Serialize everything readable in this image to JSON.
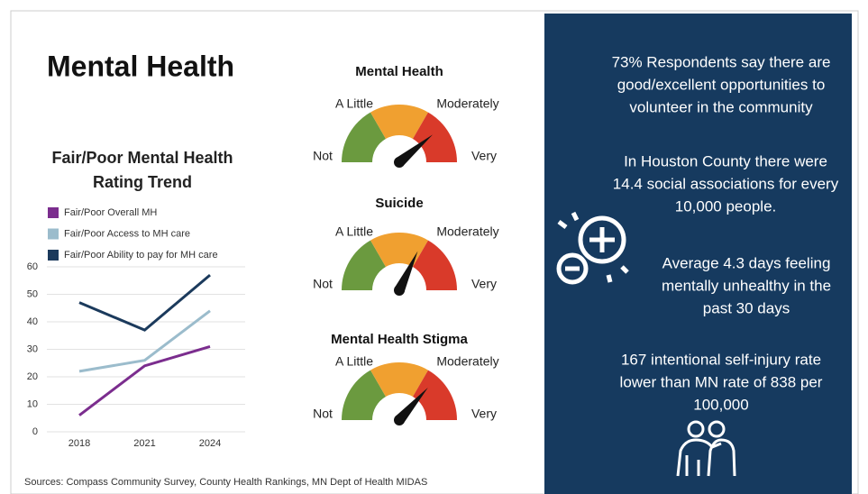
{
  "title": "Mental Health",
  "chart_data": {
    "type": "line",
    "title": [
      "Fair/Poor Mental Health",
      "Rating Trend"
    ],
    "categories": [
      "2018",
      "2021",
      "2024"
    ],
    "series": [
      {
        "name": "Fair/Poor Overall MH",
        "color": "#7b2d8e",
        "values": [
          6,
          24,
          31
        ]
      },
      {
        "name": "Fair/Poor Access to MH care",
        "color": "#9bbccc",
        "values": [
          22,
          26,
          44
        ]
      },
      {
        "name": "Fair/Poor Ability to pay for MH care",
        "color": "#1b3a5c",
        "values": [
          47,
          37,
          57
        ]
      }
    ],
    "ylim": [
      0,
      60
    ],
    "yticks": [
      0,
      10,
      20,
      30,
      40,
      50,
      60
    ],
    "grid": true
  },
  "gauge_lim": [
    0,
    100
  ],
  "gauges": [
    {
      "title": "Mental Health",
      "labels": [
        "Not",
        "A Little",
        "Moderately",
        "Very"
      ],
      "value": 78
    },
    {
      "title": "Suicide",
      "labels": [
        "Not",
        "A Little",
        "Moderately",
        "Very"
      ],
      "value": 64
    },
    {
      "title": "Mental Health Stigma",
      "labels": [
        "Not",
        "A Little",
        "Moderately",
        "Very"
      ],
      "value": 73
    }
  ],
  "facts": [
    [
      "73% Respondents say there are",
      "good/excellent opportunities to",
      "volunteer in the community"
    ],
    [
      "In Houston County there were",
      "14.4 social associations for every",
      "10,000 people."
    ],
    [
      "Average 4.3 days feeling",
      "mentally unhealthy in the",
      "past 30 days"
    ],
    [
      "167 intentional self-injury rate",
      "lower than MN rate of  838 per",
      "100,000"
    ]
  ],
  "sources": "Sources: Compass Community Survey, County Health Rankings, MN Dept of Health MIDAS"
}
